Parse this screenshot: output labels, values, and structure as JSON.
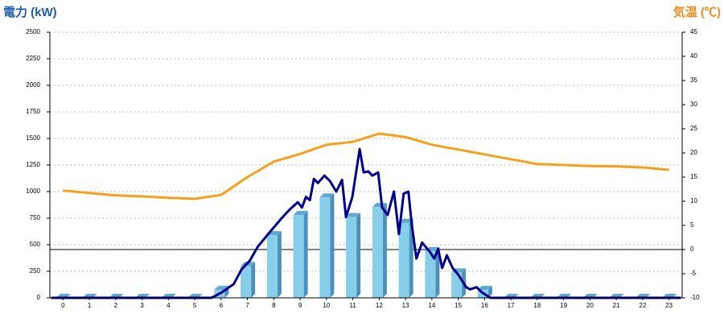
{
  "chart_data": {
    "type": "bar",
    "y_axis_label": "電力 (kW)",
    "y2_axis_label": "気温 (℃)",
    "categories": [
      "0",
      "1",
      "2",
      "3",
      "4",
      "5",
      "6",
      "7",
      "8",
      "9",
      "10",
      "11",
      "12",
      "13",
      "14",
      "15",
      "16",
      "17",
      "18",
      "19",
      "20",
      "21",
      "22",
      "23"
    ],
    "ylim": [
      0,
      2500
    ],
    "yticks": [
      0,
      250,
      500,
      750,
      1000,
      1250,
      1500,
      1750,
      2000,
      2250,
      2500
    ],
    "y2lim": [
      -10,
      45
    ],
    "y2ticks": [
      -10,
      -5,
      0,
      5,
      10,
      15,
      20,
      25,
      30,
      35,
      40,
      45
    ],
    "grid": true,
    "series": [
      {
        "type": "bar",
        "color": "#87ceeb",
        "values": [
          0,
          0,
          0,
          0,
          0,
          0,
          75,
          300,
          590,
          780,
          945,
          760,
          855,
          705,
          440,
          240,
          75,
          0,
          0,
          0,
          0,
          0,
          0,
          0
        ]
      },
      {
        "type": "line",
        "color": "#00008b",
        "x": [
          -0.45,
          5.63,
          6.02,
          6.48,
          6.78,
          7.09,
          7.39,
          7.85,
          8.3,
          8.6,
          8.91,
          9.07,
          9.22,
          9.37,
          9.52,
          9.67,
          9.92,
          10.13,
          10.37,
          10.59,
          10.74,
          10.98,
          11.26,
          11.41,
          11.59,
          11.74,
          11.96,
          12.11,
          12.32,
          12.56,
          12.75,
          12.93,
          13.11,
          13.23,
          13.41,
          13.63,
          13.93,
          14.09,
          14.24,
          14.39,
          14.57,
          14.79,
          15.0,
          15.3,
          15.45,
          15.7,
          15.91,
          16.22,
          23.45
        ],
        "values": [
          0,
          0,
          50,
          130,
          270,
          350,
          480,
          620,
          750,
          830,
          900,
          850,
          950,
          920,
          1120,
          1080,
          1150,
          1100,
          1000,
          1110,
          760,
          950,
          1400,
          1180,
          1190,
          1150,
          1180,
          850,
          780,
          1000,
          600,
          980,
          1000,
          700,
          370,
          520,
          430,
          370,
          460,
          280,
          400,
          280,
          220,
          100,
          80,
          100,
          50,
          0,
          0
        ]
      },
      {
        "type": "line",
        "color": "#f5a01a",
        "axis": "y2",
        "values": [
          12.2,
          11.7,
          11.2,
          11,
          10.7,
          10.5,
          11.3,
          15,
          18.2,
          19.8,
          21.7,
          22.3,
          24,
          23.3,
          21.7,
          20.7,
          19.7,
          18.7,
          17.7,
          17.5,
          17.3,
          17.2,
          17,
          16.5
        ]
      }
    ]
  }
}
